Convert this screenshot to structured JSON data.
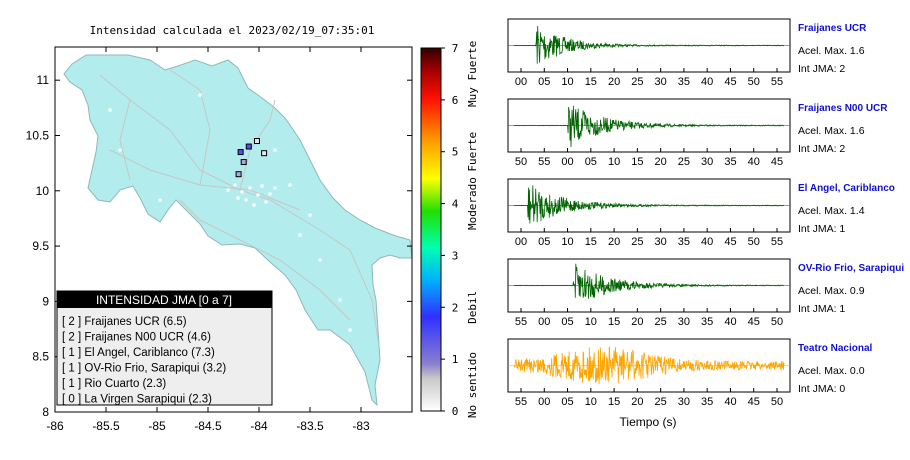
{
  "map": {
    "title": "Intensidad calculada el 2023/02/19_07:35:01",
    "x_ticks": [
      -86,
      -85.5,
      -85,
      -84.5,
      -84,
      -83.5,
      -83
    ],
    "y_ticks": [
      8,
      8.5,
      9,
      9.5,
      10,
      10.5,
      11
    ],
    "xlim": [
      -86,
      -82.5
    ],
    "ylim": [
      8,
      11.3
    ],
    "land_color": "#b3ecec",
    "stations": [
      {
        "lon": -84.18,
        "lat": 10.35,
        "int": 2
      },
      {
        "lon": -84.1,
        "lat": 10.4,
        "int": 2
      },
      {
        "lon": -84.02,
        "lat": 10.45,
        "int": 0
      },
      {
        "lon": -84.15,
        "lat": 10.26,
        "int": 1
      },
      {
        "lon": -83.95,
        "lat": 10.34,
        "int": 0
      },
      {
        "lon": -84.2,
        "lat": 10.15,
        "int": 1
      }
    ]
  },
  "colorbar": {
    "ticks": [
      "0",
      "1",
      "2",
      "3",
      "4",
      "5",
      "6",
      "7"
    ],
    "labels": [
      "No sentido",
      "Debil",
      "Moderado",
      "Fuerte",
      "Muy Fuerte"
    ]
  },
  "legend": {
    "title": "INTENSIDAD JMA [0 a 7]",
    "items": [
      "[ 2 ] Fraijanes UCR (6.5)",
      "[ 2 ] Fraijanes N00 UCR (4.6)",
      "[ 1 ] El Angel, Cariblanco (7.3)",
      "[ 1 ] OV-Rio Frio, Sarapiqui (3.2)",
      "[ 1 ] Rio Cuarto (2.3)",
      "[ 0 ] La Virgen Sarapiqui (2.3)"
    ]
  },
  "chart_data": [
    {
      "type": "line",
      "title": "Fraijanes UCR",
      "ticks": [
        "00",
        "05",
        "10",
        "15",
        "20",
        "25",
        "30",
        "35",
        "40",
        "45",
        "50",
        "55"
      ],
      "color": "#006400",
      "onset": 0.08,
      "peak": 1.6,
      "info": [
        "Acel. Max. 1.6",
        "Int JMA: 2"
      ]
    },
    {
      "type": "line",
      "title": "Fraijanes N00 UCR",
      "ticks": [
        "50",
        "55",
        "00",
        "05",
        "10",
        "15",
        "20",
        "25",
        "30",
        "35",
        "40",
        "45"
      ],
      "color": "#006400",
      "onset": 0.2,
      "peak": 1.6,
      "info": [
        "Acel. Max. 1.6",
        "Int JMA: 2"
      ]
    },
    {
      "type": "line",
      "title": "El Angel, Cariblanco",
      "ticks": [
        "00",
        "05",
        "10",
        "15",
        "20",
        "25",
        "30",
        "35",
        "40",
        "45",
        "50",
        "55"
      ],
      "color": "#006400",
      "onset": 0.05,
      "peak": 1.4,
      "info": [
        "Acel. Max. 1.4",
        "Int JMA: 1"
      ]
    },
    {
      "type": "line",
      "title": "OV-Rio Frio, Sarapiqui",
      "ticks": [
        "55",
        "00",
        "05",
        "10",
        "15",
        "20",
        "25",
        "30",
        "35",
        "40",
        "45",
        "50"
      ],
      "color": "#006400",
      "onset": 0.22,
      "peak": 0.9,
      "info": [
        "Acel. Max. 0.9",
        "Int JMA: 1"
      ]
    },
    {
      "type": "line",
      "title": "Teatro Nacional",
      "ticks": [
        "55",
        "00",
        "05",
        "10",
        "15",
        "20",
        "25",
        "30",
        "35",
        "40",
        "45",
        "50"
      ],
      "color": "#ffa500",
      "onset": 0.0,
      "peak": 0.0,
      "info": [
        "Acel. Max. 0.0",
        "Int JMA: 0"
      ]
    }
  ],
  "xlabel": "Tiempo (s)"
}
